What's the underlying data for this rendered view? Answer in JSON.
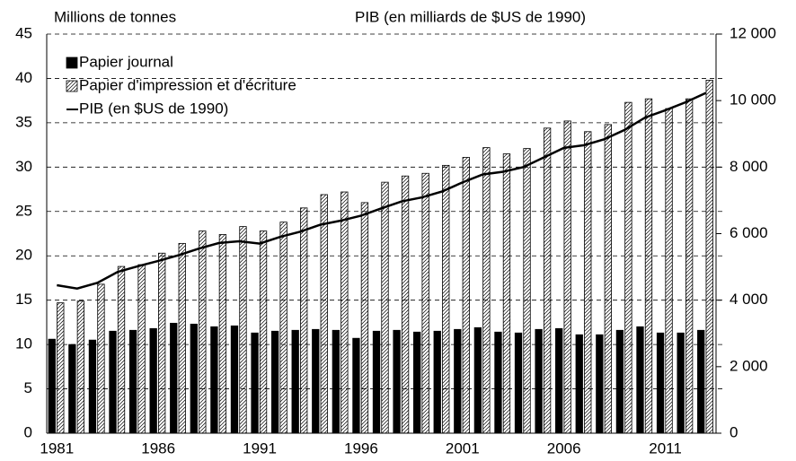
{
  "chart_data": {
    "type": "bar",
    "y_axis_title": "Millions de tonnes",
    "y2_axis_title": "PIB (en milliards de $US de 1990)",
    "categories": [
      "1981",
      null,
      null,
      null,
      null,
      "1986",
      null,
      null,
      null,
      null,
      "1991",
      null,
      null,
      null,
      null,
      "1996",
      null,
      null,
      null,
      null,
      "2001",
      null,
      null,
      null,
      null,
      "2006",
      null,
      null,
      null,
      null,
      "2011",
      null,
      null
    ],
    "series": [
      {
        "name": "Papier journal",
        "color": "#000000",
        "hatch": false,
        "values": [
          10.6,
          10.0,
          10.5,
          11.5,
          11.6,
          11.8,
          12.4,
          12.3,
          12.0,
          12.1,
          11.3,
          11.5,
          11.6,
          11.7,
          11.6,
          10.7,
          11.5,
          11.6,
          11.4,
          11.5,
          11.7,
          11.9,
          11.4,
          11.3,
          11.7,
          11.8,
          11.1,
          11.1,
          11.6,
          12.0,
          11.3,
          11.3,
          11.6
        ]
      },
      {
        "name": "Papier d'impression et d'écriture",
        "color": "#000000",
        "hatch": true,
        "values": [
          14.7,
          14.9,
          16.8,
          18.8,
          19.0,
          20.3,
          21.4,
          22.8,
          22.4,
          23.3,
          22.8,
          23.8,
          25.4,
          26.9,
          27.2,
          26.0,
          28.3,
          29.0,
          29.3,
          30.2,
          31.1,
          32.2,
          31.5,
          32.1,
          34.4,
          35.2,
          34.0,
          34.8,
          37.3,
          37.7,
          36.6,
          37.7,
          39.8
        ]
      },
      {
        "name": "PIB (en $US de 1990)",
        "color": "#000000",
        "type": "line",
        "axis": "y2",
        "values": [
          4450,
          4350,
          4520,
          4850,
          5020,
          5180,
          5350,
          5550,
          5720,
          5770,
          5700,
          5900,
          6060,
          6270,
          6390,
          6540,
          6760,
          6970,
          7090,
          7270,
          7540,
          7780,
          7860,
          8000,
          8290,
          8580,
          8660,
          8840,
          9120,
          9490,
          9710,
          9950,
          10230
        ]
      }
    ],
    "ylim": [
      0,
      45
    ],
    "yticks": [
      0,
      5,
      10,
      15,
      20,
      25,
      30,
      35,
      40,
      45
    ],
    "y2lim": [
      0,
      12000
    ],
    "y2ticks": [
      0,
      {
        "value": 2000,
        "label": "2 000"
      },
      {
        "value": 4000,
        "label": "4 000"
      },
      {
        "value": 6000,
        "label": "6 000"
      },
      {
        "value": 8000,
        "label": "8 000"
      },
      {
        "value": 10000,
        "label": "10 000"
      },
      {
        "value": 12000,
        "label": "12 000"
      }
    ],
    "grid": true,
    "legend": "top-left"
  }
}
